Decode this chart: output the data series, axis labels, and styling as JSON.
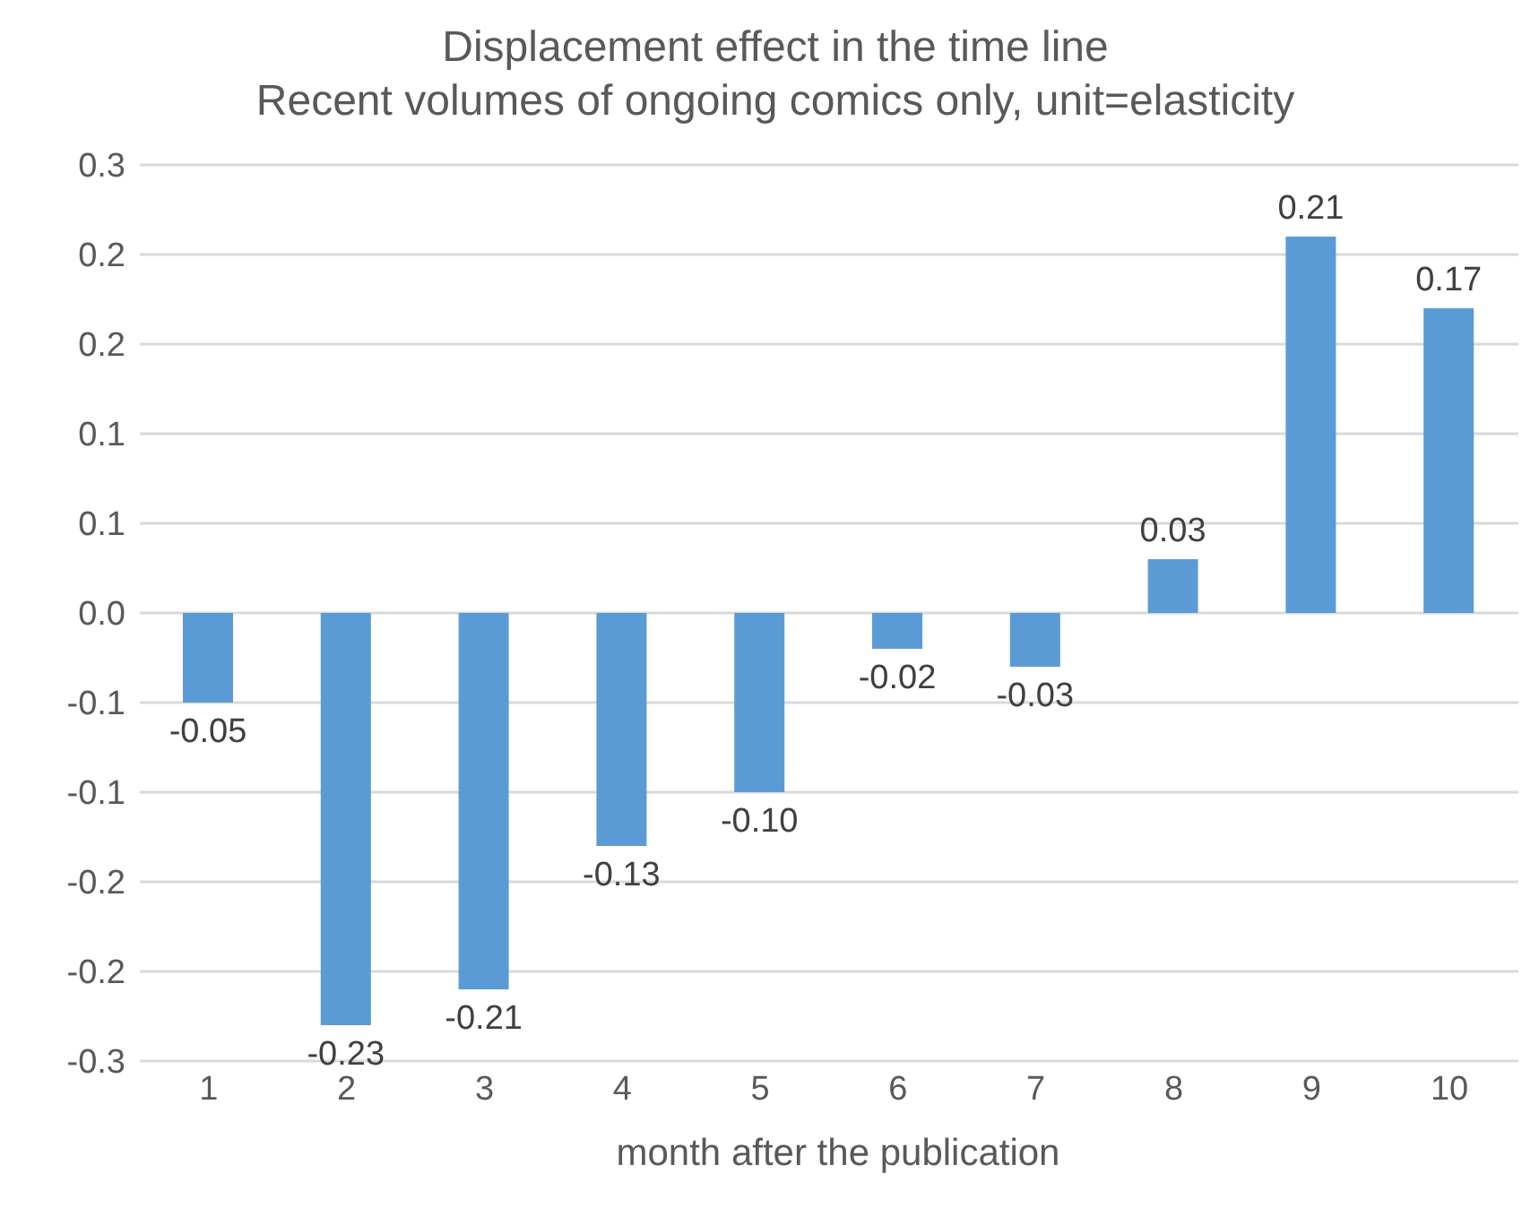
{
  "chart_data": {
    "type": "bar",
    "title": "Displacement effect in the time line",
    "subtitle": "Recent volumes of ongoing comics only, unit=elasticity",
    "xlabel": "month after the publication",
    "categories": [
      "1",
      "2",
      "3",
      "4",
      "5",
      "6",
      "7",
      "8",
      "9",
      "10"
    ],
    "values": [
      -0.05,
      -0.23,
      -0.21,
      -0.13,
      -0.1,
      -0.02,
      -0.03,
      0.03,
      0.21,
      0.17
    ],
    "value_labels": [
      "-0.05",
      "-0.23",
      "-0.21",
      "-0.13",
      "-0.10",
      "-0.02",
      "-0.03",
      "0.03",
      "0.21",
      "0.17"
    ],
    "color": "#5b9bd5",
    "ylim": [
      -0.25,
      0.25
    ],
    "yticks": [
      {
        "value": 0.25,
        "label": "0.3"
      },
      {
        "value": 0.2,
        "label": "0.2"
      },
      {
        "value": 0.15,
        "label": "0.2"
      },
      {
        "value": 0.1,
        "label": "0.1"
      },
      {
        "value": 0.05,
        "label": "0.1"
      },
      {
        "value": 0,
        "label": "0.0"
      },
      {
        "value": -0.05,
        "label": "-0.1"
      },
      {
        "value": -0.1,
        "label": "-0.1"
      },
      {
        "value": -0.15,
        "label": "-0.2"
      },
      {
        "value": -0.2,
        "label": "-0.2"
      },
      {
        "value": -0.25,
        "label": "-0.3"
      }
    ],
    "grid": "y"
  }
}
